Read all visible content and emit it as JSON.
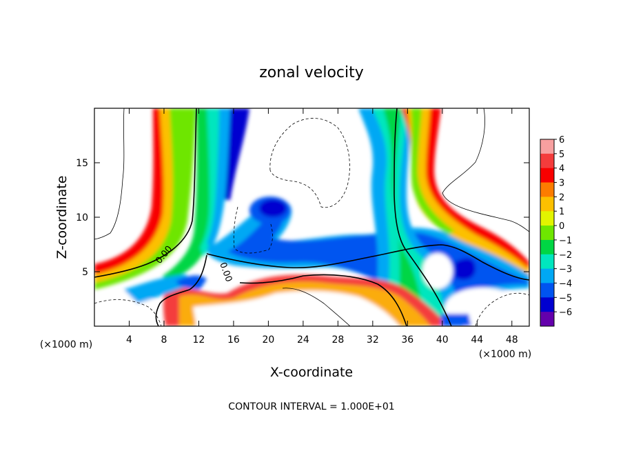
{
  "chart_data": {
    "type": "heatmap",
    "title": "zonal velocity",
    "xlabel": "X-coordinate",
    "ylabel": "Z-coordinate",
    "x_unit_label": "(×1000 m)",
    "x_unit_label_right": "(×1000 m)",
    "xlim": [
      0,
      50
    ],
    "ylim": [
      0,
      20
    ],
    "x_ticks": [
      4,
      8,
      12,
      16,
      20,
      24,
      28,
      32,
      36,
      40,
      44,
      48
    ],
    "y_ticks": [
      5,
      10,
      15
    ],
    "x_tick_labels": [
      "4",
      "8",
      "12",
      "16",
      "20",
      "24",
      "28",
      "32",
      "36",
      "40",
      "44",
      "48"
    ],
    "y_tick_labels": [
      "5",
      "10",
      "15"
    ],
    "colorbar": {
      "levels": [
        6,
        5,
        4,
        3,
        2,
        1,
        0,
        -1,
        -2,
        -3,
        -4,
        -5,
        -6
      ],
      "level_labels": [
        "6",
        "5",
        "4",
        "3",
        "2",
        "1",
        "0",
        "−1",
        "−2",
        "−3",
        "−4",
        "−5",
        "−6"
      ],
      "colors": [
        "#f7a0a0",
        "#f43c3c",
        "#f80000",
        "#fc7c00",
        "#fcc000",
        "#e2f400",
        "#6ee600",
        "#00d644",
        "#00e6be",
        "#00a8f4",
        "#0054f0",
        "#0000d0",
        "#6400ac"
      ]
    },
    "contour_labels": [
      "0.00",
      "0.00"
    ],
    "footer": "CONTOUR INTERVAL = 1.000E+01"
  }
}
